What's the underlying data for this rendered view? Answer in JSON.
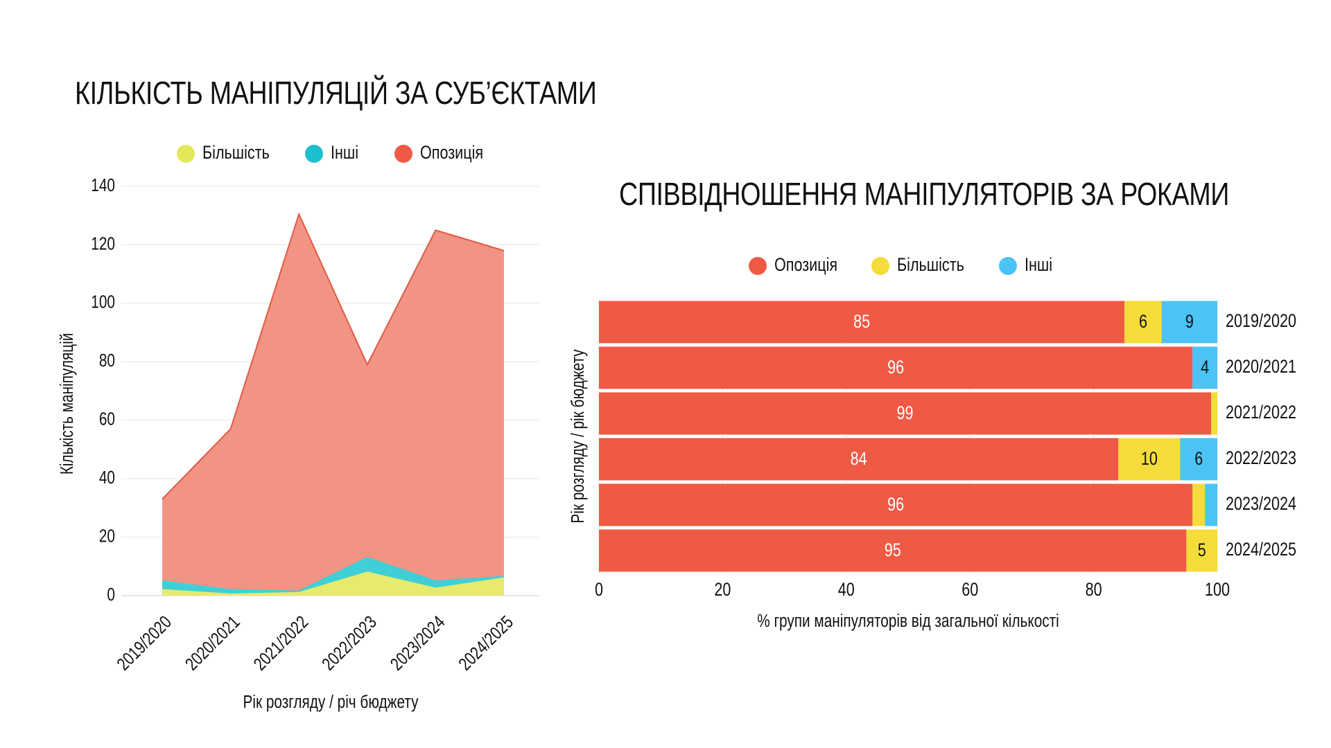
{
  "chart_data": [
    {
      "type": "area",
      "title": "КІЛЬКІСТЬ МАНІПУЛЯЦІЙ ЗА СУБ’ЄКТАМИ",
      "xlabel": "Рік розгляду / річ бюджету",
      "ylabel": "Кількість маніпуляцій",
      "categories": [
        "2019/2020",
        "2020/2021",
        "2021/2022",
        "2022/2023",
        "2023/2024",
        "2024/2025"
      ],
      "stacked": true,
      "ylim": [
        0,
        140
      ],
      "yticks": [
        0,
        20,
        40,
        60,
        80,
        100,
        120,
        140
      ],
      "grid": true,
      "legend_position": "top",
      "legend_order": [
        "Більшість",
        "Інші",
        "Опозиція"
      ],
      "series": [
        {
          "name": "Більшість",
          "values": [
            2,
            0.5,
            1,
            8,
            2.5,
            6
          ],
          "color": "#e6ea6e"
        },
        {
          "name": "Інші",
          "values": [
            3,
            1.5,
            0.5,
            5,
            2.5,
            0.5
          ],
          "color": "#3fcfd7"
        },
        {
          "name": "Опозиція",
          "values": [
            28,
            55,
            129,
            66,
            120,
            111.5
          ],
          "color": "#f29484",
          "line_color": "#e05a45"
        }
      ]
    },
    {
      "type": "bar",
      "orientation": "horizontal",
      "stacked": true,
      "title": "СПІВВІДНОШЕННЯ МАНІПУЛЯТОРІВ ЗА РОКАМИ",
      "xlabel": "% групи маніпуляторів від загальної кількості",
      "ylabel": "Рік розгляду / рік бюджету",
      "categories": [
        "2019/2020",
        "2020/2021",
        "2021/2022",
        "2022/2023",
        "2023/2024",
        "2024/2025"
      ],
      "xlim": [
        0,
        100
      ],
      "xticks": [
        0,
        20,
        40,
        60,
        80,
        100
      ],
      "grid": true,
      "legend_position": "top",
      "series": [
        {
          "name": "Опозиція",
          "values": [
            85,
            96,
            99,
            84,
            96,
            95
          ],
          "labels": [
            "85",
            "96",
            "99",
            "84",
            "96",
            "95"
          ],
          "color": "#ef5a45",
          "label_color": "#ffffff"
        },
        {
          "name": "Більшість",
          "values": [
            6,
            0,
            1,
            10,
            2,
            5
          ],
          "labels": [
            "6",
            "",
            "",
            "10",
            "",
            "5"
          ],
          "color": "#f4dc3a",
          "label_color": "#111111"
        },
        {
          "name": "Інші",
          "values": [
            9,
            4,
            0,
            6,
            2,
            0
          ],
          "labels": [
            "9",
            "4",
            "",
            "6",
            "",
            ""
          ],
          "color": "#4cc3f5",
          "label_color": "#111111"
        }
      ]
    }
  ]
}
